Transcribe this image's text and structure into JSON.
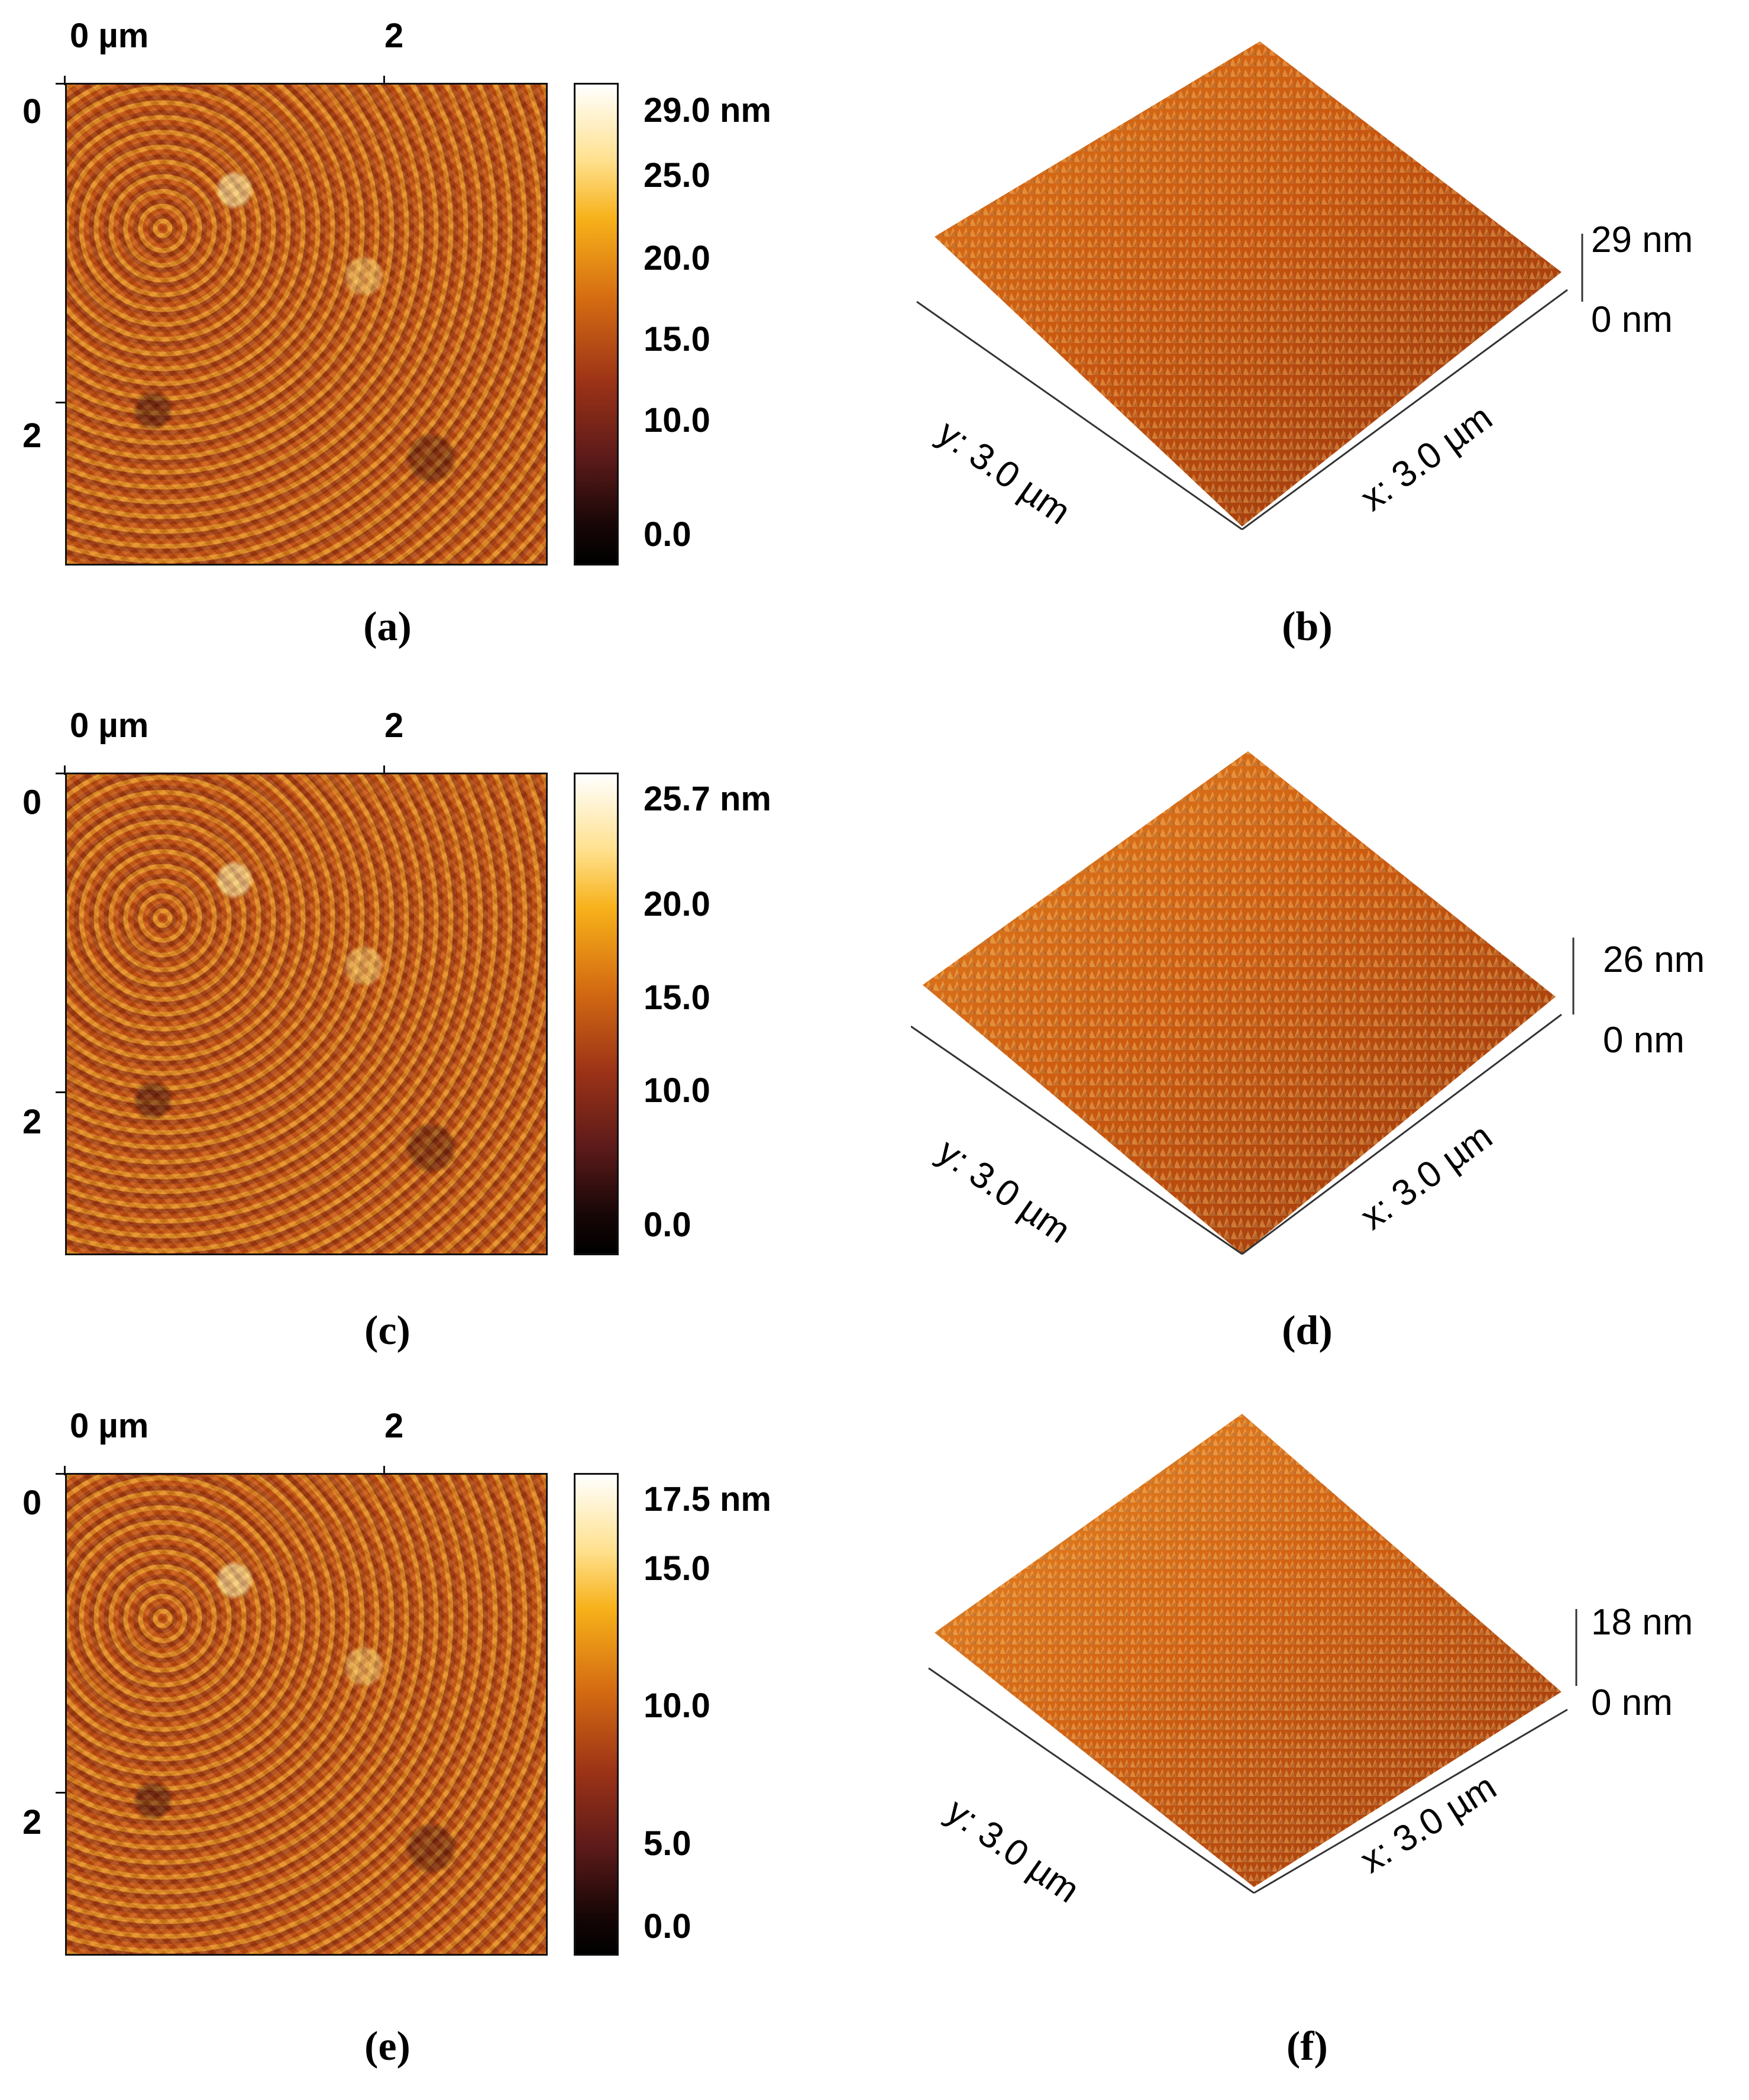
{
  "figure": {
    "panels": [
      {
        "id": "a",
        "caption": "(a)",
        "x_axis": {
          "start": "0 µm",
          "tick": "2"
        },
        "y_axis": {
          "top": "0",
          "tick": "2"
        },
        "colorbar": {
          "labels": [
            "29.0 nm",
            "25.0",
            "20.0",
            "15.0",
            "10.0",
            "0.0"
          ]
        }
      },
      {
        "id": "b",
        "caption": "(b)",
        "z_max": "29 nm",
        "z_min": "0 nm",
        "y_label": "y: 3.0 µm",
        "x_label": "x: 3.0 µm"
      },
      {
        "id": "c",
        "caption": "(c)",
        "x_axis": {
          "start": "0 µm",
          "tick": "2"
        },
        "y_axis": {
          "top": "0",
          "tick": "2"
        },
        "colorbar": {
          "labels": [
            "25.7 nm",
            "20.0",
            "15.0",
            "10.0",
            "0.0"
          ]
        }
      },
      {
        "id": "d",
        "caption": "(d)",
        "z_max": "26 nm",
        "z_min": "0 nm",
        "y_label": "y: 3.0 µm",
        "x_label": "x: 3.0 µm"
      },
      {
        "id": "e",
        "caption": "(e)",
        "x_axis": {
          "start": "0 µm",
          "tick": "2"
        },
        "y_axis": {
          "top": "0",
          "tick": "2"
        },
        "colorbar": {
          "labels": [
            "17.5 nm",
            "15.0",
            "10.0",
            "5.0",
            "0.0"
          ]
        }
      },
      {
        "id": "f",
        "caption": "(f)",
        "z_max": "18 nm",
        "z_min": "0 nm",
        "y_label": "y: 3.0 µm",
        "x_label": "x: 3.0 µm"
      }
    ]
  },
  "colors": {
    "background": "#ffffff",
    "surface_dark": "#9f3510",
    "surface_mid": "#d96c14",
    "surface_light": "#ffd27a"
  }
}
